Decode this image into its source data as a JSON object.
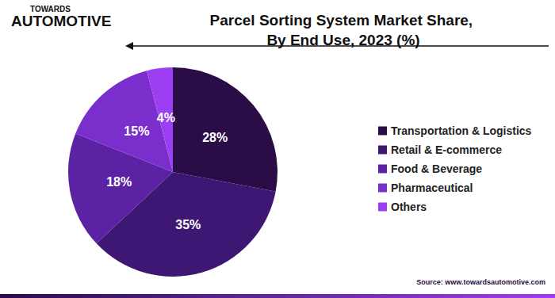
{
  "logo": {
    "line1": "TOWARDS",
    "line2": "AUTOMOTIVE"
  },
  "source": "Source: www.towardsautomotive.com",
  "chart_data": {
    "type": "pie",
    "title": "Parcel Sorting System Market Share, By End Use, 2023 (%)",
    "categories": [
      "Transportation & Logistics",
      "Retail & E-commerce",
      "Food & Beverage",
      "Pharmaceutical",
      "Others"
    ],
    "values": [
      28,
      35,
      18,
      15,
      4
    ],
    "value_labels": [
      "28%",
      "35%",
      "18%",
      "15%",
      "4%"
    ],
    "colors": [
      "#2a0c47",
      "#3e1673",
      "#5b22a3",
      "#7a2fcc",
      "#9c3ff2"
    ],
    "data_labels": true,
    "legend": "right"
  }
}
